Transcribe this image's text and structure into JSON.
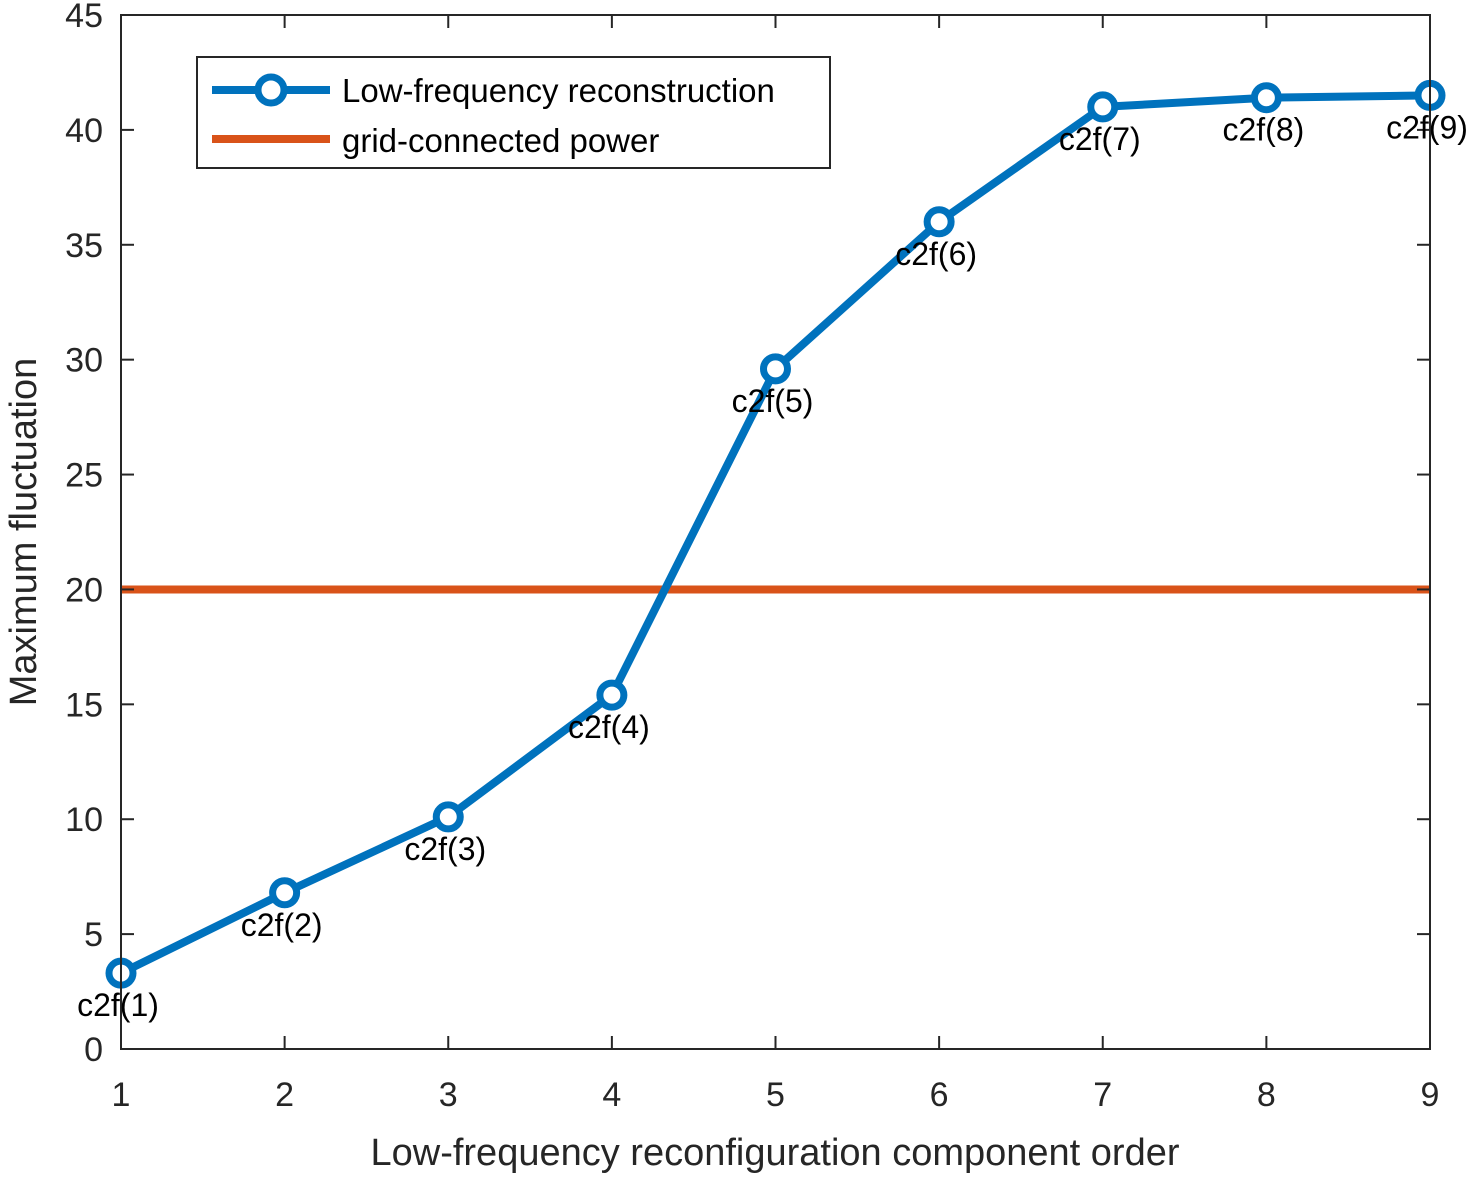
{
  "chart_data": {
    "type": "line",
    "title": "",
    "xlabel": "Low-frequency reconfiguration component order",
    "ylabel": "Maximum fluctuation",
    "xlim": [
      1,
      9
    ],
    "ylim": [
      0,
      45
    ],
    "xticks": [
      1,
      2,
      3,
      4,
      5,
      6,
      7,
      8,
      9
    ],
    "yticks": [
      0,
      5,
      10,
      15,
      20,
      25,
      30,
      35,
      40,
      45
    ],
    "grid": false,
    "legend_position": "top-left",
    "series": [
      {
        "name": "Low-frequency reconstruction",
        "color": "#0072BD",
        "marker": "circle",
        "x": [
          1,
          2,
          3,
          4,
          5,
          6,
          7,
          8,
          9
        ],
        "values": [
          3.3,
          6.8,
          10.1,
          15.4,
          29.6,
          36.0,
          41.0,
          41.4,
          41.5
        ],
        "point_labels": [
          "c2f(1)",
          "c2f(2)",
          "c2f(3)",
          "c2f(4)",
          "c2f(5)",
          "c2f(6)",
          "c2f(7)",
          "c2f(8)",
          "c2f(9)"
        ]
      },
      {
        "name": "grid-connected power",
        "color": "#D95319",
        "marker": "none",
        "x": [
          1,
          9
        ],
        "values": [
          20,
          20
        ]
      }
    ]
  }
}
